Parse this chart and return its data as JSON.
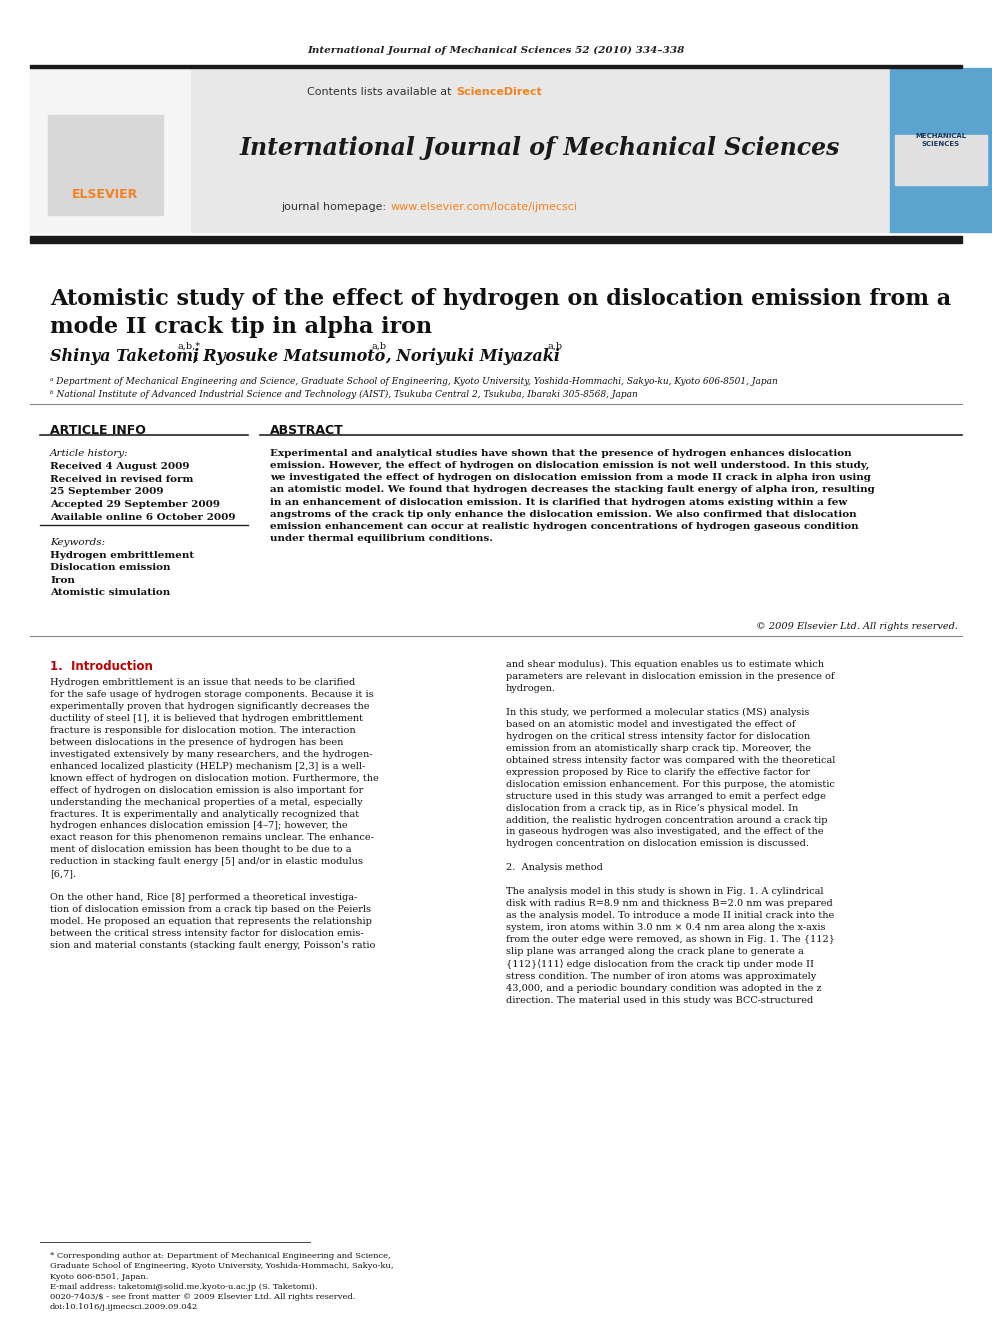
{
  "journal_line": "International Journal of Mechanical Sciences 52 (2010) 334–338",
  "header_bg": "#e8e8e8",
  "journal_name": "International Journal of Mechanical Sciences",
  "journal_homepage_link": "www.elsevier.com/locate/ijmecsci",
  "paper_title": "Atomistic study of the effect of hydrogen on dislocation emission from a\nmode II crack tip in alpha iron",
  "affil_a": "ᵃ Department of Mechanical Engineering and Science, Graduate School of Engineering, Kyoto University, Yoshida-Hommachi, Sakyo-ku, Kyoto 606-8501, Japan",
  "affil_b": "ᵇ National Institute of Advanced Industrial Science and Technology (AIST), Tsukuba Central 2, Tsukuba, Ibaraki 305-8568, Japan",
  "article_info_title": "ARTICLE INFO",
  "article_history_label": "Article history:",
  "received1": "Received 4 August 2009",
  "received2": "Received in revised form",
  "received2b": "25 September 2009",
  "accepted": "Accepted 29 September 2009",
  "available": "Available online 6 October 2009",
  "keywords_label": "Keywords:",
  "kw1": "Hydrogen embrittlement",
  "kw2": "Dislocation emission",
  "kw3": "Iron",
  "kw4": "Atomistic simulation",
  "abstract_title": "ABSTRACT",
  "abstract_text": "Experimental and analytical studies have shown that the presence of hydrogen enhances dislocation\nemission. However, the effect of hydrogen on dislocation emission is not well understood. In this study,\nwe investigated the effect of hydrogen on dislocation emission from a mode II crack in alpha iron using\nan atomistic model. We found that hydrogen decreases the stacking fault energy of alpha iron, resulting\nin an enhancement of dislocation emission. It is clarified that hydrogen atoms existing within a few\nangstroms of the crack tip only enhance the dislocation emission. We also confirmed that dislocation\nemission enhancement can occur at realistic hydrogen concentrations of hydrogen gaseous condition\nunder thermal equilibrium conditions.",
  "copyright": "© 2009 Elsevier Ltd. All rights reserved.",
  "section1_title": "1.  Introduction",
  "section1_col1": "Hydrogen embrittlement is an issue that needs to be clarified\nfor the safe usage of hydrogen storage components. Because it is\nexperimentally proven that hydrogen significantly decreases the\nductility of steel [1], it is believed that hydrogen embrittlement\nfracture is responsible for dislocation motion. The interaction\nbetween dislocations in the presence of hydrogen has been\ninvestigated extensively by many researchers, and the hydrogen-\nenhanced localized plasticity (HELP) mechanism [2,3] is a well-\nknown effect of hydrogen on dislocation motion. Furthermore, the\neffect of hydrogen on dislocation emission is also important for\nunderstanding the mechanical properties of a metal, especially\nfractures. It is experimentally and analytically recognized that\nhydrogen enhances dislocation emission [4–7]; however, the\nexact reason for this phenomenon remains unclear. The enhance-\nment of dislocation emission has been thought to be due to a\nreduction in stacking fault energy [5] and/or in elastic modulus\n[6,7].\n\nOn the other hand, Rice [8] performed a theoretical investiga-\ntion of dislocation emission from a crack tip based on the Peierls\nmodel. He proposed an equation that represents the relationship\nbetween the critical stress intensity factor for dislocation emis-\nsion and material constants (stacking fault energy, Poisson’s ratio",
  "section1_col2": "and shear modulus). This equation enables us to estimate which\nparameters are relevant in dislocation emission in the presence of\nhydrogen.\n\nIn this study, we performed a molecular statics (MS) analysis\nbased on an atomistic model and investigated the effect of\nhydrogen on the critical stress intensity factor for dislocation\nemission from an atomistically sharp crack tip. Moreover, the\nobtained stress intensity factor was compared with the theoretical\nexpression proposed by Rice to clarify the effective factor for\ndislocation emission enhancement. For this purpose, the atomistic\nstructure used in this study was arranged to emit a perfect edge\ndislocation from a crack tip, as in Rice’s physical model. In\naddition, the realistic hydrogen concentration around a crack tip\nin gaseous hydrogen was also investigated, and the effect of the\nhydrogen concentration on dislocation emission is discussed.\n\n2.  Analysis method\n\nThe analysis model in this study is shown in Fig. 1. A cylindrical\ndisk with radius R=8.9 nm and thickness B=2.0 nm was prepared\nas the analysis model. To introduce a mode II initial crack into the\nsystem, iron atoms within 3.0 nm × 0.4 nm area along the x-axis\nfrom the outer edge were removed, as shown in Fig. 1. The {112}\nslip plane was arranged along the crack plane to generate a\n{112}⟨111⟩ edge dislocation from the crack tip under mode II\nstress condition. The number of iron atoms was approximately\n43,000, and a periodic boundary condition was adopted in the z\ndirection. The material used in this study was BCC-structured",
  "footnote_star": "* Corresponding author at: Department of Mechanical Engineering and Science,\nGraduate School of Engineering, Kyoto University, Yoshida-Hommachi, Sakyo-ku,\nKyoto 606-8501, Japan.\nE-mail address: taketomi@solid.me.kyoto-u.ac.jp (S. Taketomi).",
  "footnote_issn": "0020-7403/$ - see front matter © 2009 Elsevier Ltd. All rights reserved.\ndoi:10.1016/j.ijmecsci.2009.09.042",
  "red_accent": "#c00000",
  "orange_accent": "#f5821f",
  "bg_white": "#ffffff",
  "text_black": "#000000",
  "text_dark": "#111111"
}
